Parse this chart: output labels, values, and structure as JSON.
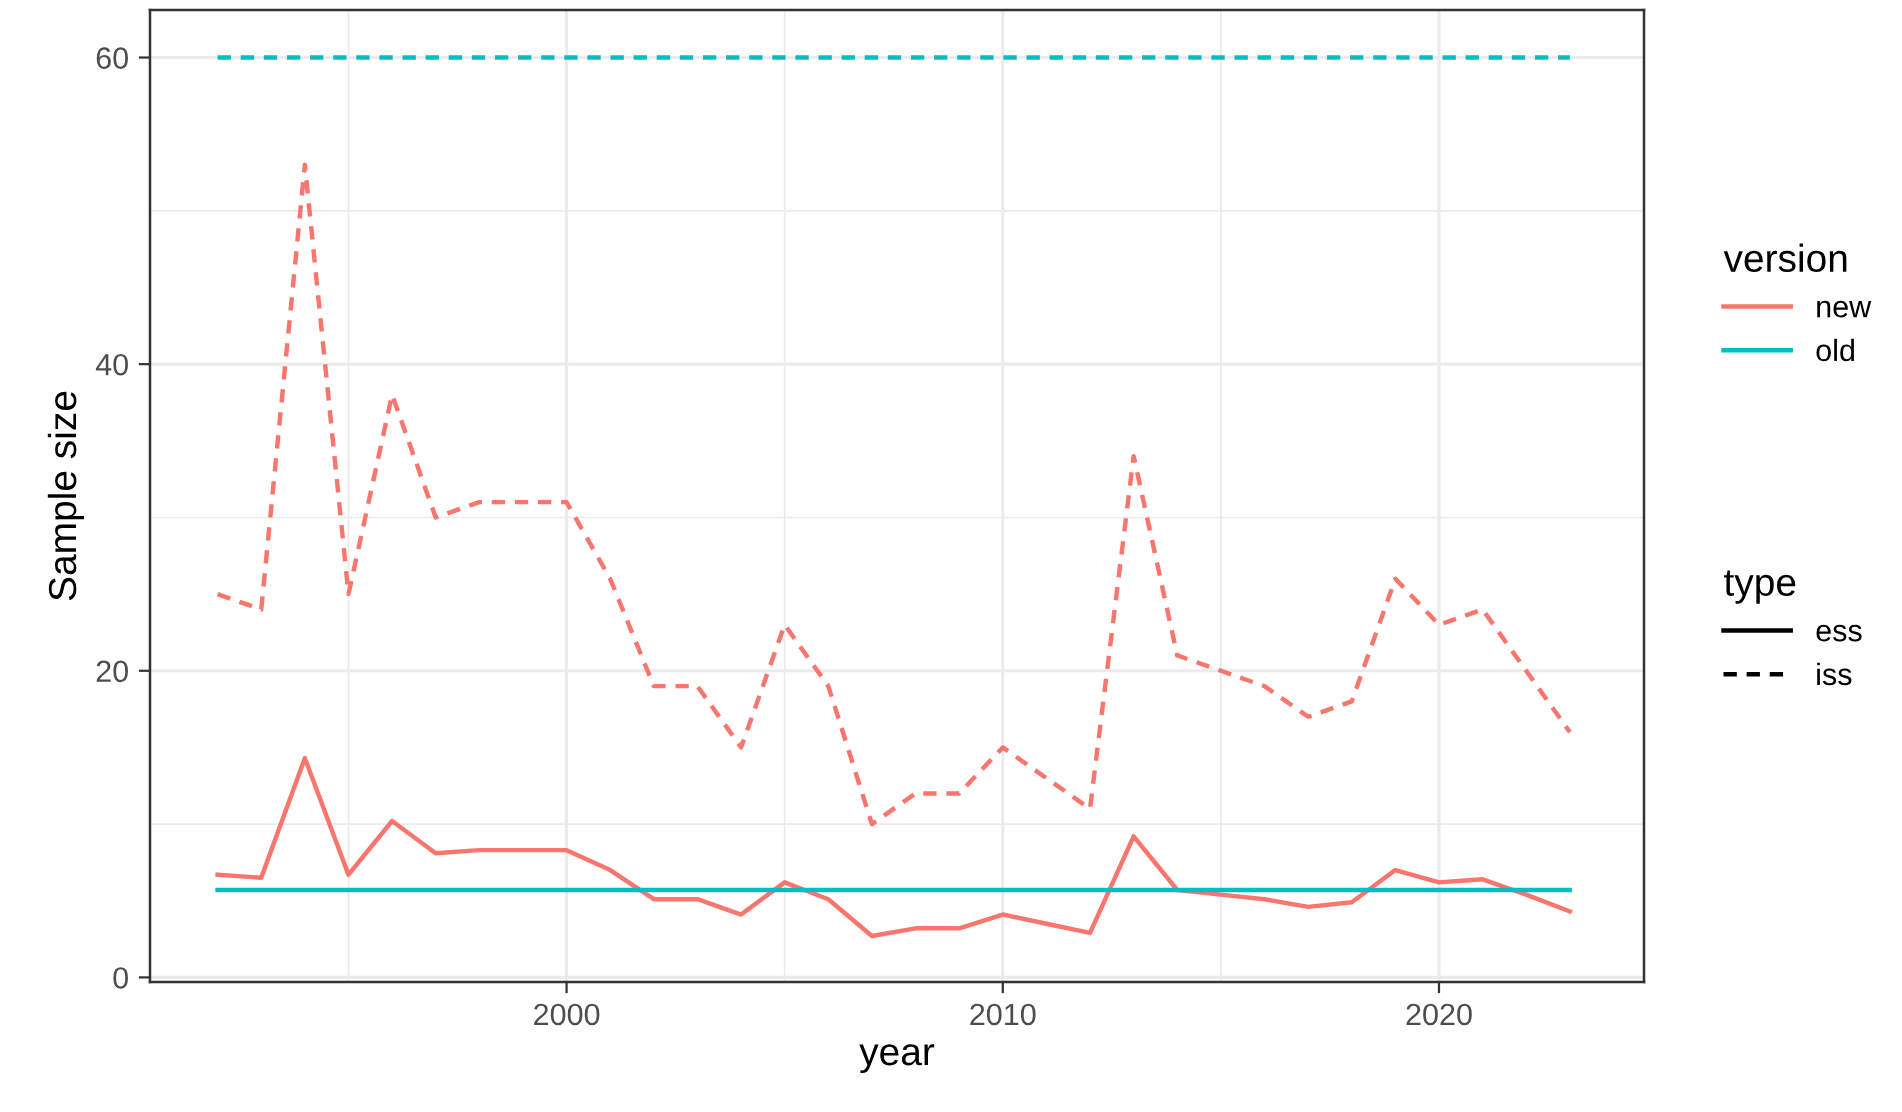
{
  "chart_data": {
    "type": "line",
    "xlabel": "year",
    "ylabel": "Sample size",
    "x": [
      1992,
      1993,
      1994,
      1995,
      1996,
      1997,
      1998,
      1999,
      2000,
      2001,
      2002,
      2003,
      2004,
      2005,
      2006,
      2007,
      2008,
      2009,
      2010,
      2011,
      2012,
      2013,
      2014,
      2015,
      2016,
      2017,
      2018,
      2019,
      2020,
      2021,
      2022,
      2023
    ],
    "series": [
      {
        "name": "new",
        "color": "#f8766d",
        "line_style": "solid",
        "values": [
          6.7,
          6.5,
          14.3,
          6.7,
          10.2,
          8.1,
          8.3,
          8.3,
          8.3,
          7.0,
          5.1,
          5.1,
          4.1,
          6.2,
          5.1,
          2.7,
          3.2,
          3.2,
          4.1,
          3.5,
          2.9,
          9.2,
          5.7,
          5.4,
          5.1,
          4.6,
          4.9,
          7.0,
          6.2,
          6.4,
          5.4,
          4.3
        ]
      },
      {
        "name": "old",
        "color": "#00bfc4",
        "line_style": "solid",
        "values": [
          5.7,
          5.7,
          5.7,
          5.7,
          5.7,
          5.7,
          5.7,
          5.7,
          5.7,
          5.7,
          5.7,
          5.7,
          5.7,
          5.7,
          5.7,
          5.7,
          5.7,
          5.7,
          5.7,
          5.7,
          5.7,
          5.7,
          5.7,
          5.7,
          5.7,
          5.7,
          5.7,
          5.7,
          5.7,
          5.7,
          5.7,
          5.7
        ]
      },
      {
        "color": "#f8766d",
        "line_style": "dashed",
        "values": [
          25,
          24,
          53,
          25,
          38,
          30,
          31,
          31,
          31,
          26,
          19,
          19,
          15,
          23,
          19,
          10,
          12,
          12,
          15,
          13,
          11,
          34,
          21,
          20,
          19,
          17,
          18,
          26,
          23,
          24,
          20,
          16
        ]
      },
      {
        "color": "#00bfc4",
        "line_style": "dashed",
        "values": [
          60,
          60,
          60,
          60,
          60,
          60,
          60,
          60,
          60,
          60,
          60,
          60,
          60,
          60,
          60,
          60,
          60,
          60,
          60,
          60,
          60,
          60,
          60,
          60,
          60,
          60,
          60,
          60,
          60,
          60,
          60,
          60
        ]
      }
    ],
    "legend_title": [
      "version",
      "type"
    ],
    "annotations": [
      "ess",
      "iss"
    ],
    "xlim": [
      1990.45,
      2024.7
    ],
    "xticks": [
      2000,
      2010,
      2020
    ],
    "ylim": [
      -0.3,
      63.1
    ],
    "yticks": [
      0,
      20,
      40,
      60
    ],
    "grid": true,
    "legend": "right"
  }
}
